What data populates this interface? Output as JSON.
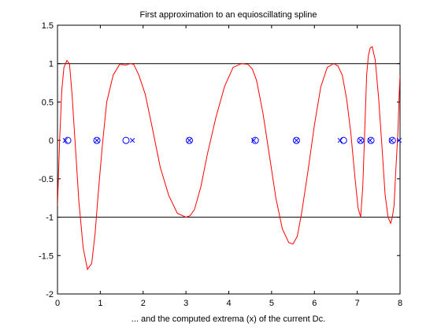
{
  "chart_data": {
    "type": "line",
    "title": "First approximation to an equioscillating spline",
    "xlabel": "... and the computed extrema (x) of the current Dc.",
    "ylabel": "",
    "xlim": [
      0,
      8
    ],
    "ylim": [
      -2,
      1.5
    ],
    "x_ticks": [
      "0",
      "1",
      "2",
      "3",
      "4",
      "5",
      "6",
      "7",
      "8"
    ],
    "y_ticks": [
      "-2",
      "-1.5",
      "-1",
      "-0.5",
      "0",
      "0.5",
      "1",
      "1.5"
    ],
    "reference_lines": [
      {
        "y": 1,
        "color": "#000000"
      },
      {
        "y": -1,
        "color": "#000000"
      }
    ],
    "series": [
      {
        "color": "#ff0000",
        "kind": "line",
        "x": [
          0.0,
          0.05,
          0.1,
          0.15,
          0.22,
          0.28,
          0.34,
          0.42,
          0.5,
          0.6,
          0.7,
          0.8,
          0.88,
          0.95,
          1.05,
          1.15,
          1.3,
          1.45,
          1.6,
          1.7,
          1.78,
          1.9,
          2.05,
          2.2,
          2.4,
          2.6,
          2.8,
          3.0,
          3.1,
          3.2,
          3.35,
          3.5,
          3.7,
          3.9,
          4.1,
          4.3,
          4.45,
          4.55,
          4.65,
          4.8,
          4.95,
          5.1,
          5.25,
          5.4,
          5.5,
          5.6,
          5.7,
          5.85,
          6.0,
          6.15,
          6.3,
          6.45,
          6.55,
          6.65,
          6.75,
          6.85,
          6.95,
          7.02,
          7.08,
          7.13,
          7.18,
          7.22,
          7.26,
          7.3,
          7.35,
          7.42,
          7.5,
          7.58,
          7.65,
          7.72,
          7.78,
          7.82,
          7.86,
          7.9,
          7.95,
          7.98,
          8.0
        ],
        "y": [
          -0.85,
          0.0,
          0.65,
          0.95,
          1.04,
          1.0,
          0.6,
          -0.1,
          -0.8,
          -1.4,
          -1.68,
          -1.6,
          -1.2,
          -0.7,
          -0.05,
          0.5,
          0.85,
          0.99,
          0.98,
          1.0,
          0.99,
          0.85,
          0.6,
          0.2,
          -0.35,
          -0.72,
          -0.95,
          -1.0,
          -0.98,
          -0.9,
          -0.6,
          -0.18,
          0.3,
          0.7,
          0.95,
          1.0,
          0.99,
          0.93,
          0.78,
          0.35,
          -0.2,
          -0.75,
          -1.15,
          -1.33,
          -1.35,
          -1.25,
          -0.95,
          -0.4,
          0.2,
          0.7,
          0.95,
          1.0,
          0.97,
          0.85,
          0.55,
          0.1,
          -0.5,
          -0.88,
          -1.0,
          -0.6,
          0.2,
          0.85,
          1.1,
          1.2,
          1.22,
          1.05,
          0.55,
          -0.1,
          -0.7,
          -1.0,
          -1.08,
          -1.0,
          -0.85,
          -0.4,
          0.1,
          0.6,
          0.85
        ]
      },
      {
        "color": "#0000ff",
        "kind": "markers",
        "marker": "o",
        "x": [
          0.24,
          0.92,
          1.6,
          3.08,
          4.62,
          5.58,
          6.68,
          7.08,
          7.32,
          7.82
        ],
        "y": [
          0,
          0,
          0,
          0,
          0,
          0,
          0,
          0,
          0,
          0
        ]
      },
      {
        "color": "#0000ff",
        "kind": "markers",
        "marker": "x",
        "x": [
          0.18,
          0.92,
          1.75,
          3.08,
          4.58,
          5.58,
          6.6,
          7.08,
          7.3,
          7.8,
          7.98
        ],
        "y": [
          0,
          0,
          0,
          0,
          0,
          0,
          0,
          0,
          0,
          0,
          0
        ]
      }
    ],
    "grid": false
  }
}
